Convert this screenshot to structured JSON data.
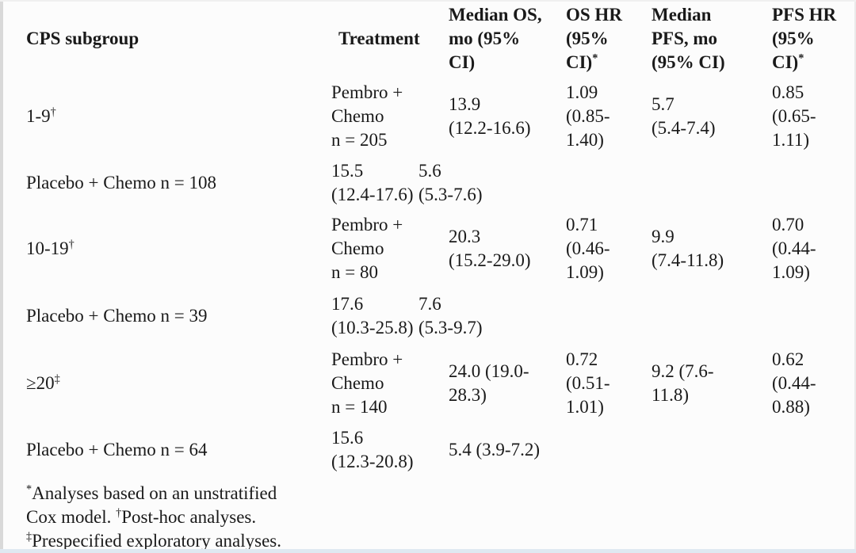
{
  "colors": {
    "ink": "#1a1a1a",
    "paper": "#fcfcfc"
  },
  "table": {
    "headers": [
      {
        "label": "CPS subgroup",
        "sup": ""
      },
      {
        "label": "Treatment",
        "sup": ""
      },
      {
        "label": "Median OS,\nmo (95%\nCI)",
        "sup": ""
      },
      {
        "label": "OS HR\n(95%\nCI)",
        "sup": "*"
      },
      {
        "label": "Median\nPFS, mo\n(95% CI)",
        "sup": ""
      },
      {
        "label": "PFS HR\n(95%\nCI)",
        "sup": "*"
      }
    ],
    "rows": [
      {
        "cps": "1-9",
        "cps_sup": "†",
        "treatment": "Pembro +\nChemo\nn = 205",
        "median_os": "13.9\n(12.2-16.6)",
        "os_hr": "1.09\n(0.85-\n1.40)",
        "median_pfs": "5.7\n(5.4-7.4)",
        "pfs_hr": "0.85\n(0.65-\n1.11)"
      },
      {
        "label": "Placebo + Chemo n = 108",
        "median_os": "15.5\n(12.4-17.6)",
        "median_pfs": "5.6\n(5.3-7.6)"
      },
      {
        "cps": "10-19",
        "cps_sup": "†",
        "treatment": "Pembro +\nChemo\nn = 80",
        "median_os": "20.3\n(15.2-29.0)",
        "os_hr": "0.71\n(0.46-\n1.09)",
        "median_pfs": "9.9\n(7.4-11.8)",
        "pfs_hr": "0.70\n(0.44-\n1.09)"
      },
      {
        "label": "Placebo + Chemo n = 39",
        "median_os": "17.6\n(10.3-25.8)",
        "median_pfs": "7.6\n(5.3-9.7)"
      },
      {
        "cps": "≥20",
        "cps_sup": "‡",
        "treatment": "Pembro +\nChemo\nn = 140",
        "median_os": "24.0 (19.0-\n28.3)",
        "os_hr": "0.72\n(0.51-\n1.01)",
        "median_pfs": "9.2 (7.6-\n11.8)",
        "pfs_hr": "0.62\n(0.44-\n0.88)"
      },
      {
        "label": "Placebo + Chemo n = 64",
        "median_os": "15.6\n(12.3-20.8)",
        "median_pfs": "5.4 (3.9-7.2)"
      }
    ],
    "footnote": {
      "segments": [
        {
          "sup": "*",
          "text": "Analyses based on an unstratified\nCox model. "
        },
        {
          "sup": "†",
          "text": "Post-hoc analyses.\n"
        },
        {
          "sup": "‡",
          "text": "Prespecified exploratory analyses."
        }
      ]
    }
  }
}
